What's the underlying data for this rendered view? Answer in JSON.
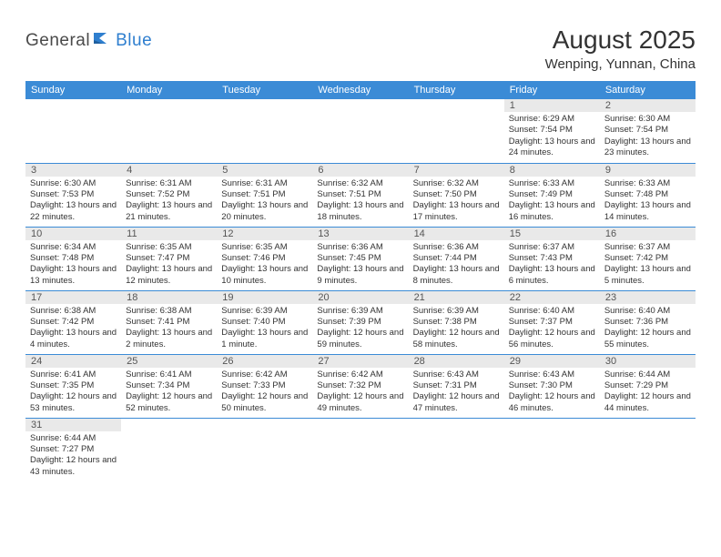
{
  "brand": {
    "part1": "General",
    "part2": "Blue"
  },
  "title": "August 2025",
  "location": "Wenping, Yunnan, China",
  "colors": {
    "header_bg": "#3b8bd6",
    "header_text": "#ffffff",
    "daynum_bg": "#e9e9e9",
    "row_border": "#3b8bd6",
    "brand_gray": "#4a4a4a",
    "brand_blue": "#2f7fcf"
  },
  "weekdays": [
    "Sunday",
    "Monday",
    "Tuesday",
    "Wednesday",
    "Thursday",
    "Friday",
    "Saturday"
  ],
  "days": {
    "1": {
      "sunrise": "Sunrise: 6:29 AM",
      "sunset": "Sunset: 7:54 PM",
      "daylight": "Daylight: 13 hours and 24 minutes."
    },
    "2": {
      "sunrise": "Sunrise: 6:30 AM",
      "sunset": "Sunset: 7:54 PM",
      "daylight": "Daylight: 13 hours and 23 minutes."
    },
    "3": {
      "sunrise": "Sunrise: 6:30 AM",
      "sunset": "Sunset: 7:53 PM",
      "daylight": "Daylight: 13 hours and 22 minutes."
    },
    "4": {
      "sunrise": "Sunrise: 6:31 AM",
      "sunset": "Sunset: 7:52 PM",
      "daylight": "Daylight: 13 hours and 21 minutes."
    },
    "5": {
      "sunrise": "Sunrise: 6:31 AM",
      "sunset": "Sunset: 7:51 PM",
      "daylight": "Daylight: 13 hours and 20 minutes."
    },
    "6": {
      "sunrise": "Sunrise: 6:32 AM",
      "sunset": "Sunset: 7:51 PM",
      "daylight": "Daylight: 13 hours and 18 minutes."
    },
    "7": {
      "sunrise": "Sunrise: 6:32 AM",
      "sunset": "Sunset: 7:50 PM",
      "daylight": "Daylight: 13 hours and 17 minutes."
    },
    "8": {
      "sunrise": "Sunrise: 6:33 AM",
      "sunset": "Sunset: 7:49 PM",
      "daylight": "Daylight: 13 hours and 16 minutes."
    },
    "9": {
      "sunrise": "Sunrise: 6:33 AM",
      "sunset": "Sunset: 7:48 PM",
      "daylight": "Daylight: 13 hours and 14 minutes."
    },
    "10": {
      "sunrise": "Sunrise: 6:34 AM",
      "sunset": "Sunset: 7:48 PM",
      "daylight": "Daylight: 13 hours and 13 minutes."
    },
    "11": {
      "sunrise": "Sunrise: 6:35 AM",
      "sunset": "Sunset: 7:47 PM",
      "daylight": "Daylight: 13 hours and 12 minutes."
    },
    "12": {
      "sunrise": "Sunrise: 6:35 AM",
      "sunset": "Sunset: 7:46 PM",
      "daylight": "Daylight: 13 hours and 10 minutes."
    },
    "13": {
      "sunrise": "Sunrise: 6:36 AM",
      "sunset": "Sunset: 7:45 PM",
      "daylight": "Daylight: 13 hours and 9 minutes."
    },
    "14": {
      "sunrise": "Sunrise: 6:36 AM",
      "sunset": "Sunset: 7:44 PM",
      "daylight": "Daylight: 13 hours and 8 minutes."
    },
    "15": {
      "sunrise": "Sunrise: 6:37 AM",
      "sunset": "Sunset: 7:43 PM",
      "daylight": "Daylight: 13 hours and 6 minutes."
    },
    "16": {
      "sunrise": "Sunrise: 6:37 AM",
      "sunset": "Sunset: 7:42 PM",
      "daylight": "Daylight: 13 hours and 5 minutes."
    },
    "17": {
      "sunrise": "Sunrise: 6:38 AM",
      "sunset": "Sunset: 7:42 PM",
      "daylight": "Daylight: 13 hours and 4 minutes."
    },
    "18": {
      "sunrise": "Sunrise: 6:38 AM",
      "sunset": "Sunset: 7:41 PM",
      "daylight": "Daylight: 13 hours and 2 minutes."
    },
    "19": {
      "sunrise": "Sunrise: 6:39 AM",
      "sunset": "Sunset: 7:40 PM",
      "daylight": "Daylight: 13 hours and 1 minute."
    },
    "20": {
      "sunrise": "Sunrise: 6:39 AM",
      "sunset": "Sunset: 7:39 PM",
      "daylight": "Daylight: 12 hours and 59 minutes."
    },
    "21": {
      "sunrise": "Sunrise: 6:39 AM",
      "sunset": "Sunset: 7:38 PM",
      "daylight": "Daylight: 12 hours and 58 minutes."
    },
    "22": {
      "sunrise": "Sunrise: 6:40 AM",
      "sunset": "Sunset: 7:37 PM",
      "daylight": "Daylight: 12 hours and 56 minutes."
    },
    "23": {
      "sunrise": "Sunrise: 6:40 AM",
      "sunset": "Sunset: 7:36 PM",
      "daylight": "Daylight: 12 hours and 55 minutes."
    },
    "24": {
      "sunrise": "Sunrise: 6:41 AM",
      "sunset": "Sunset: 7:35 PM",
      "daylight": "Daylight: 12 hours and 53 minutes."
    },
    "25": {
      "sunrise": "Sunrise: 6:41 AM",
      "sunset": "Sunset: 7:34 PM",
      "daylight": "Daylight: 12 hours and 52 minutes."
    },
    "26": {
      "sunrise": "Sunrise: 6:42 AM",
      "sunset": "Sunset: 7:33 PM",
      "daylight": "Daylight: 12 hours and 50 minutes."
    },
    "27": {
      "sunrise": "Sunrise: 6:42 AM",
      "sunset": "Sunset: 7:32 PM",
      "daylight": "Daylight: 12 hours and 49 minutes."
    },
    "28": {
      "sunrise": "Sunrise: 6:43 AM",
      "sunset": "Sunset: 7:31 PM",
      "daylight": "Daylight: 12 hours and 47 minutes."
    },
    "29": {
      "sunrise": "Sunrise: 6:43 AM",
      "sunset": "Sunset: 7:30 PM",
      "daylight": "Daylight: 12 hours and 46 minutes."
    },
    "30": {
      "sunrise": "Sunrise: 6:44 AM",
      "sunset": "Sunset: 7:29 PM",
      "daylight": "Daylight: 12 hours and 44 minutes."
    },
    "31": {
      "sunrise": "Sunrise: 6:44 AM",
      "sunset": "Sunset: 7:27 PM",
      "daylight": "Daylight: 12 hours and 43 minutes."
    }
  },
  "layout": {
    "first_weekday_index": 5,
    "num_days": 31
  }
}
